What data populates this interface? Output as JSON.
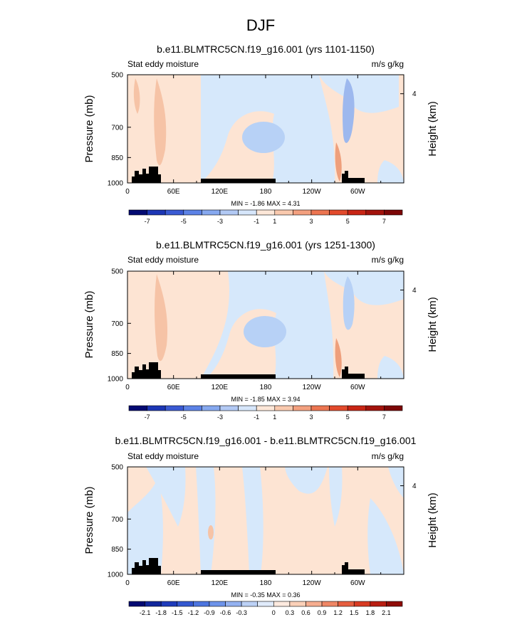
{
  "figure_title": "DJF",
  "colors": {
    "neg_pale": "#d6e8fb",
    "neg_mid": "#b7d1f6",
    "neg_strong": "#9db8ee",
    "pos_pale": "#fde4d3",
    "pos_mid": "#f6c3a6",
    "pos_strong": "#ee9f7c",
    "topography": "#000000"
  },
  "chart_data": [
    {
      "type": "heatmap",
      "title": "b.e11.BLMTRC5CN.f19_g16.001 (yrs 1101-1150)",
      "left_label": "Stat eddy moisture",
      "right_label": "m/s g/kg",
      "ylabel": "Pressure (mb)",
      "ylabel_right": "Height (km)",
      "y_ticks": [
        "500",
        "700",
        "850",
        "1000"
      ],
      "y_right_ticks": [
        "4"
      ],
      "x_ticks": [
        "0",
        "60E",
        "120E",
        "180",
        "120W",
        "60W"
      ],
      "x_range": [
        0,
        360
      ],
      "y_range_mb": [
        1000,
        500
      ],
      "stats": "MIN = -1.86  MAX = 4.31",
      "colorbar_labels": [
        "-7",
        "-5",
        "-3",
        "-1",
        "1",
        "3",
        "5",
        "7"
      ],
      "colorbar_colors": [
        "#030a72",
        "#1c36b5",
        "#3a5ad3",
        "#5c82e6",
        "#86a8ef",
        "#b2c9f4",
        "#d6e6fa",
        "#fde7d8",
        "#f9c9ae",
        "#f3a07f",
        "#ec7551",
        "#e24a2c",
        "#c82515",
        "#a3130c",
        "#7d0707"
      ]
    },
    {
      "type": "heatmap",
      "title": "b.e11.BLMTRC5CN.f19_g16.001 (yrs 1251-1300)",
      "left_label": "Stat eddy moisture",
      "right_label": "m/s g/kg",
      "ylabel": "Pressure (mb)",
      "ylabel_right": "Height (km)",
      "y_ticks": [
        "500",
        "700",
        "850",
        "1000"
      ],
      "y_right_ticks": [
        "4"
      ],
      "x_ticks": [
        "0",
        "60E",
        "120E",
        "180",
        "120W",
        "60W"
      ],
      "x_range": [
        0,
        360
      ],
      "y_range_mb": [
        1000,
        500
      ],
      "stats": "MIN = -1.85  MAX = 3.94",
      "colorbar_labels": [
        "-7",
        "-5",
        "-3",
        "-1",
        "1",
        "3",
        "5",
        "7"
      ],
      "colorbar_colors": [
        "#030a72",
        "#1c36b5",
        "#3a5ad3",
        "#5c82e6",
        "#86a8ef",
        "#b2c9f4",
        "#d6e6fa",
        "#fde7d8",
        "#f9c9ae",
        "#f3a07f",
        "#ec7551",
        "#e24a2c",
        "#c82515",
        "#a3130c",
        "#7d0707"
      ]
    },
    {
      "type": "heatmap",
      "title": "b.e11.BLMTRC5CN.f19_g16.001 - b.e11.BLMTRC5CN.f19_g16.001",
      "left_label": "Stat eddy moisture",
      "right_label": "m/s g/kg",
      "ylabel": "Pressure (mb)",
      "ylabel_right": "Height (km)",
      "y_ticks": [
        "500",
        "700",
        "850",
        "1000"
      ],
      "y_right_ticks": [
        "4"
      ],
      "x_ticks": [
        "0",
        "60E",
        "120E",
        "180",
        "120W",
        "60W"
      ],
      "x_range": [
        0,
        360
      ],
      "y_range_mb": [
        1000,
        500
      ],
      "stats": "MIN = -0.35  MAX = 0.36",
      "colorbar_labels": [
        "-2.1",
        "-1.8",
        "-1.5",
        "-1.2",
        "-0.9",
        "-0.6",
        "-0.3",
        "0",
        "0.3",
        "0.6",
        "0.9",
        "1.2",
        "1.5",
        "1.8",
        "2.1"
      ],
      "colorbar_colors": [
        "#030a72",
        "#12279c",
        "#1f3cbb",
        "#3458d0",
        "#4d75df",
        "#6d93ea",
        "#94b2f1",
        "#bcd1f6",
        "#e0ebfb",
        "#fdeadf",
        "#fbd0b8",
        "#f6ad8f",
        "#ef8665",
        "#e65e3f",
        "#d83b22",
        "#b91e12",
        "#8f0c08"
      ]
    }
  ]
}
